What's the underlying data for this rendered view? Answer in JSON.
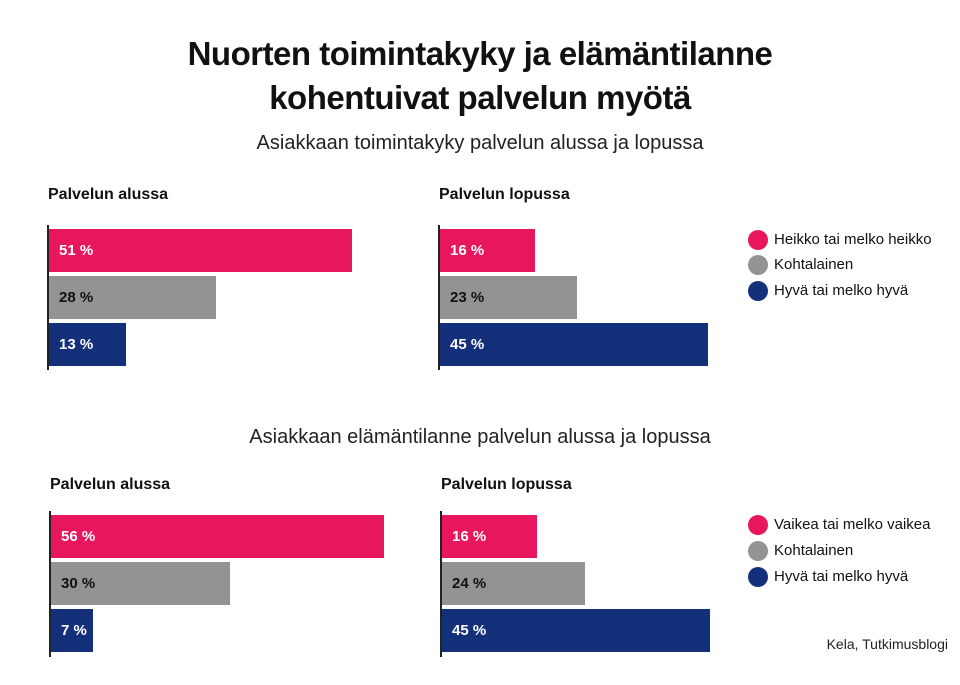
{
  "title_line1": "Nuorten toimintakyky ja elämäntilanne",
  "title_line2": "kohentuivat palvelun myötä",
  "source": "Kela, Tutkimusblogi",
  "colors": {
    "pink": "#e8175d",
    "gray": "#939393",
    "navy": "#14307a"
  },
  "chart_data": [
    {
      "type": "bar",
      "orientation": "horizontal",
      "title": "Asiakkaan toimintakyky palvelun alussa ja lopussa",
      "legend": [
        "Heikko tai melko heikko",
        "Kohtalainen",
        "Hyvä tai melko hyvä"
      ],
      "panels": [
        {
          "label": "Palvelun alussa",
          "values": [
            51,
            28,
            13
          ],
          "labels": [
            "51 %",
            "28 %",
            "13 %"
          ]
        },
        {
          "label": "Palvelun lopussa",
          "values": [
            16,
            23,
            45
          ],
          "labels": [
            "16 %",
            "23 %",
            "45 %"
          ]
        }
      ]
    },
    {
      "type": "bar",
      "orientation": "horizontal",
      "title": "Asiakkaan elämäntilanne palvelun alussa ja lopussa",
      "legend": [
        "Vaikea tai melko vaikea",
        "Kohtalainen",
        "Hyvä tai melko hyvä"
      ],
      "panels": [
        {
          "label": "Palvelun alussa",
          "values": [
            56,
            30,
            7
          ],
          "labels": [
            "56 %",
            "30 %",
            "7 %"
          ]
        },
        {
          "label": "Palvelun lopussa",
          "values": [
            16,
            24,
            45
          ],
          "labels": [
            "16 %",
            "24 %",
            "45 %"
          ]
        }
      ]
    }
  ]
}
